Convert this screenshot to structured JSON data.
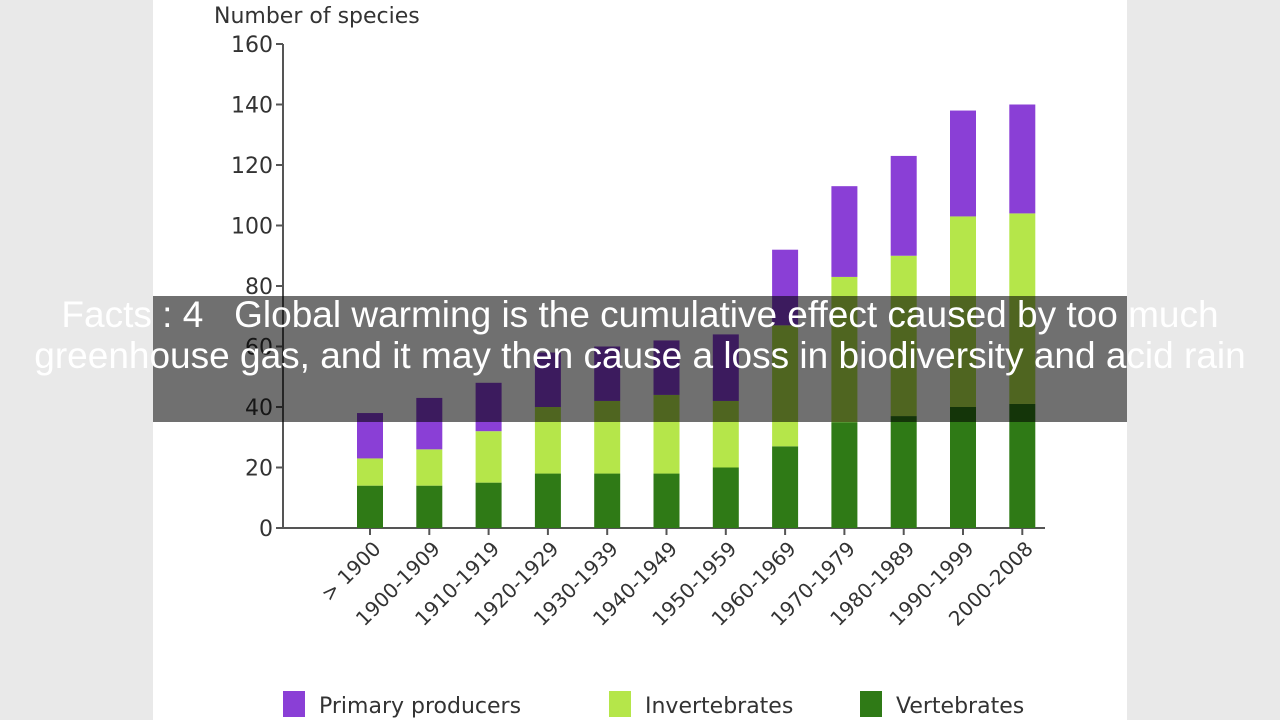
{
  "caption": "Facts : 4   Global warming is the cumulative effect caused by too much greenhouse gas, and it may then cause a loss in biodiversity and acid rain",
  "colors": {
    "page_background": "#e9e9e9",
    "chart_background": "#ffffff",
    "primary_producers": "#8a3fd6",
    "invertebrates": "#b5e64a",
    "vertebrates": "#2f7a16"
  },
  "chart_data": {
    "type": "bar",
    "stacked": true,
    "ylabel": "Number of species",
    "xlabel": "",
    "ylim": [
      0,
      160
    ],
    "yticks": [
      0,
      20,
      40,
      60,
      80,
      100,
      120,
      140,
      160
    ],
    "categories": [
      "> 1900",
      "1900-1909",
      "1910-1919",
      "1920-1929",
      "1930-1939",
      "1940-1949",
      "1950-1959",
      "1960-1969",
      "1970-1979",
      "1980-1989",
      "1990-1999",
      "2000-2008"
    ],
    "series": [
      {
        "name": "Vertebrates",
        "color": "#2f7a16",
        "values": [
          14,
          14,
          15,
          18,
          18,
          18,
          20,
          27,
          35,
          37,
          40,
          41
        ]
      },
      {
        "name": "Invertebrates",
        "color": "#b5e64a",
        "values": [
          9,
          12,
          17,
          22,
          24,
          26,
          22,
          40,
          48,
          53,
          63,
          63
        ]
      },
      {
        "name": "Primary producers",
        "color": "#8a3fd6",
        "values": [
          15,
          17,
          16,
          18,
          18,
          18,
          22,
          25,
          30,
          33,
          35,
          36
        ]
      }
    ],
    "legend": [
      "Primary producers",
      "Invertebrates",
      "Vertebrates"
    ],
    "legend_position": "bottom",
    "grid": false
  }
}
